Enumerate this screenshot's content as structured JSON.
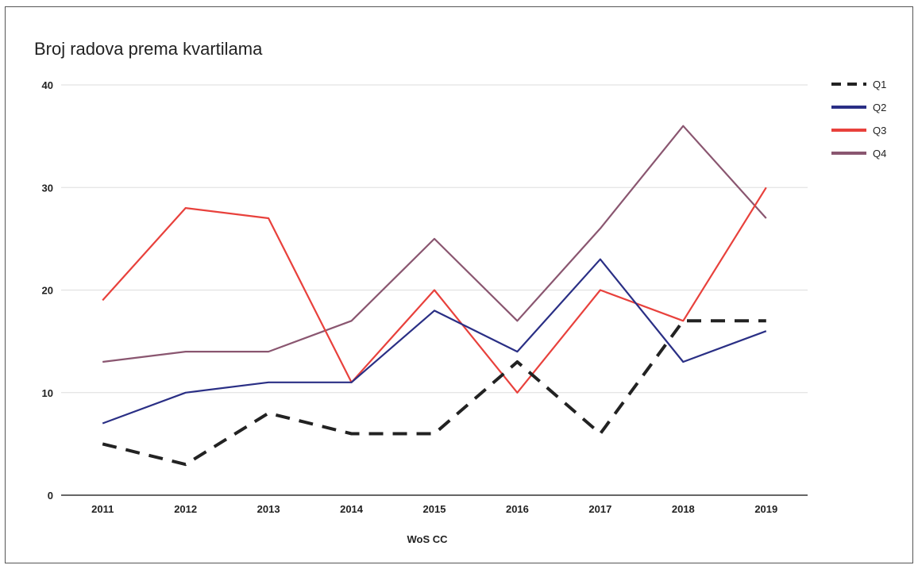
{
  "chart_data": {
    "type": "line",
    "title": "Broj radova prema kvartilama",
    "xlabel": "WoS CC",
    "ylabel": "",
    "categories": [
      "2011",
      "2012",
      "2013",
      "2014",
      "2015",
      "2016",
      "2017",
      "2018",
      "2019"
    ],
    "ylim": [
      0,
      40
    ],
    "yticks": [
      0,
      10,
      20,
      30,
      40
    ],
    "grid": true,
    "legend_position": "right-top",
    "series": [
      {
        "name": "Q1",
        "color": "#222222",
        "dashed": true,
        "values": [
          5,
          3,
          8,
          6,
          6,
          13,
          6,
          17,
          17
        ]
      },
      {
        "name": "Q2",
        "color": "#2a2f85",
        "dashed": false,
        "values": [
          7,
          10,
          11,
          11,
          18,
          14,
          23,
          13,
          16
        ]
      },
      {
        "name": "Q3",
        "color": "#e8413c",
        "dashed": false,
        "values": [
          19,
          28,
          27,
          11,
          20,
          10,
          20,
          17,
          30
        ]
      },
      {
        "name": "Q4",
        "color": "#8a5670",
        "dashed": false,
        "values": [
          13,
          14,
          14,
          17,
          25,
          17,
          26,
          36,
          27
        ]
      }
    ]
  }
}
